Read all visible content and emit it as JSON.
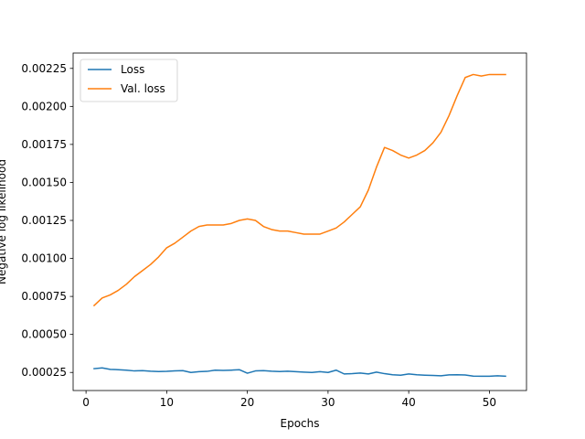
{
  "chart_data": {
    "type": "line",
    "xlabel": "Epochs",
    "ylabel": "Negative log likelihood",
    "xlim": [
      -1.6,
      54.6
    ],
    "ylim": [
      0.000131,
      0.002351
    ],
    "xticks": [
      0,
      10,
      20,
      30,
      40,
      50
    ],
    "yticks": [
      0.00025,
      0.0005,
      0.00075,
      0.001,
      0.00125,
      0.0015,
      0.00175,
      0.002,
      0.00225
    ],
    "ytick_labels": [
      "0.00025",
      "0.00050",
      "0.00075",
      "0.00100",
      "0.00125",
      "0.00150",
      "0.00175",
      "0.00200",
      "0.00225"
    ],
    "grid": false,
    "legend_position": "top-left",
    "series": [
      {
        "name": "Loss",
        "color": "#1f77b4",
        "x": [
          1,
          2,
          3,
          4,
          5,
          6,
          7,
          8,
          9,
          10,
          11,
          12,
          13,
          14,
          15,
          16,
          17,
          18,
          19,
          20,
          21,
          22,
          23,
          24,
          25,
          26,
          27,
          28,
          29,
          30,
          31,
          32,
          33,
          34,
          35,
          36,
          37,
          38,
          39,
          40,
          41,
          42,
          43,
          44,
          45,
          46,
          47,
          48,
          49,
          50,
          51,
          52
        ],
        "y": [
          0.000275,
          0.00028,
          0.00027,
          0.000268,
          0.000265,
          0.00026,
          0.000262,
          0.000258,
          0.000256,
          0.000257,
          0.00026,
          0.000262,
          0.00025,
          0.000255,
          0.000257,
          0.000265,
          0.000263,
          0.000265,
          0.000268,
          0.000245,
          0.00026,
          0.000262,
          0.000258,
          0.000256,
          0.000258,
          0.000255,
          0.000252,
          0.00025,
          0.000255,
          0.00025,
          0.000265,
          0.00024,
          0.000242,
          0.000246,
          0.00024,
          0.000252,
          0.000242,
          0.000235,
          0.000232,
          0.00024,
          0.000235,
          0.000232,
          0.00023,
          0.000228,
          0.000234,
          0.000235,
          0.000233,
          0.000226,
          0.000225,
          0.000225,
          0.000228,
          0.000225
        ]
      },
      {
        "name": "Val. loss",
        "color": "#ff7f0e",
        "x": [
          1,
          2,
          3,
          4,
          5,
          6,
          7,
          8,
          9,
          10,
          11,
          12,
          13,
          14,
          15,
          16,
          17,
          18,
          19,
          20,
          21,
          22,
          23,
          24,
          25,
          26,
          27,
          28,
          29,
          30,
          31,
          32,
          33,
          34,
          35,
          36,
          37,
          38,
          39,
          40,
          41,
          42,
          43,
          44,
          45,
          46,
          47,
          48,
          49,
          50,
          51,
          52
        ],
        "y": [
          0.00069,
          0.00074,
          0.00076,
          0.00079,
          0.00083,
          0.00088,
          0.00092,
          0.00096,
          0.00101,
          0.00107,
          0.0011,
          0.00114,
          0.00118,
          0.00121,
          0.00122,
          0.00122,
          0.00122,
          0.00123,
          0.00125,
          0.00126,
          0.00125,
          0.00121,
          0.00119,
          0.00118,
          0.00118,
          0.00117,
          0.00116,
          0.00116,
          0.00116,
          0.00118,
          0.0012,
          0.00124,
          0.00129,
          0.00134,
          0.00145,
          0.0016,
          0.00173,
          0.00171,
          0.00168,
          0.00166,
          0.00168,
          0.00171,
          0.00176,
          0.00183,
          0.00194,
          0.00207,
          0.00219,
          0.00221,
          0.0022,
          0.00221,
          0.00221,
          0.00221
        ]
      }
    ]
  }
}
